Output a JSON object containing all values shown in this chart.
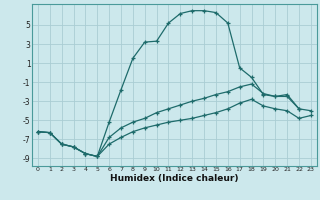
{
  "xlabel": "Humidex (Indice chaleur)",
  "background_color": "#cce8ec",
  "grid_color": "#aacdd4",
  "line_color": "#1e6b6b",
  "xlim": [
    -0.5,
    23.5
  ],
  "ylim": [
    -9.8,
    7.2
  ],
  "yticks": [
    5,
    3,
    1,
    -1,
    -3,
    -5,
    -7,
    -9
  ],
  "xticks": [
    0,
    1,
    2,
    3,
    4,
    5,
    6,
    7,
    8,
    9,
    10,
    11,
    12,
    13,
    14,
    15,
    16,
    17,
    18,
    19,
    20,
    21,
    22,
    23
  ],
  "series": [
    {
      "x": [
        0,
        1,
        2,
        3,
        4,
        5,
        6,
        7,
        8,
        9,
        10,
        11,
        12,
        13,
        14,
        15,
        16,
        17,
        18,
        19,
        20,
        21,
        22
      ],
      "y": [
        -6.2,
        -6.3,
        -7.5,
        -7.8,
        -8.5,
        -8.8,
        -5.2,
        -1.8,
        1.5,
        3.2,
        3.3,
        5.2,
        6.2,
        6.5,
        6.5,
        6.3,
        5.2,
        0.5,
        -0.5,
        -2.3,
        -2.5,
        -2.5,
        -3.8
      ]
    },
    {
      "x": [
        0,
        1,
        2,
        3,
        4,
        5,
        6,
        7,
        8,
        9,
        10,
        11,
        12,
        13,
        14,
        15,
        16,
        17,
        18,
        19,
        20,
        21,
        22,
        23
      ],
      "y": [
        -6.2,
        -6.3,
        -7.5,
        -7.8,
        -8.5,
        -8.8,
        -6.8,
        -5.8,
        -5.2,
        -4.8,
        -4.2,
        -3.8,
        -3.4,
        -3.0,
        -2.7,
        -2.3,
        -2.0,
        -1.5,
        -1.2,
        -2.2,
        -2.5,
        -2.3,
        -3.8,
        -4.0
      ]
    },
    {
      "x": [
        0,
        1,
        2,
        3,
        4,
        5,
        6,
        7,
        8,
        9,
        10,
        11,
        12,
        13,
        14,
        15,
        16,
        17,
        18,
        19,
        20,
        21,
        22,
        23
      ],
      "y": [
        -6.2,
        -6.3,
        -7.5,
        -7.8,
        -8.5,
        -8.8,
        -7.5,
        -6.8,
        -6.2,
        -5.8,
        -5.5,
        -5.2,
        -5.0,
        -4.8,
        -4.5,
        -4.2,
        -3.8,
        -3.2,
        -2.8,
        -3.5,
        -3.8,
        -4.0,
        -4.8,
        -4.5
      ]
    }
  ]
}
